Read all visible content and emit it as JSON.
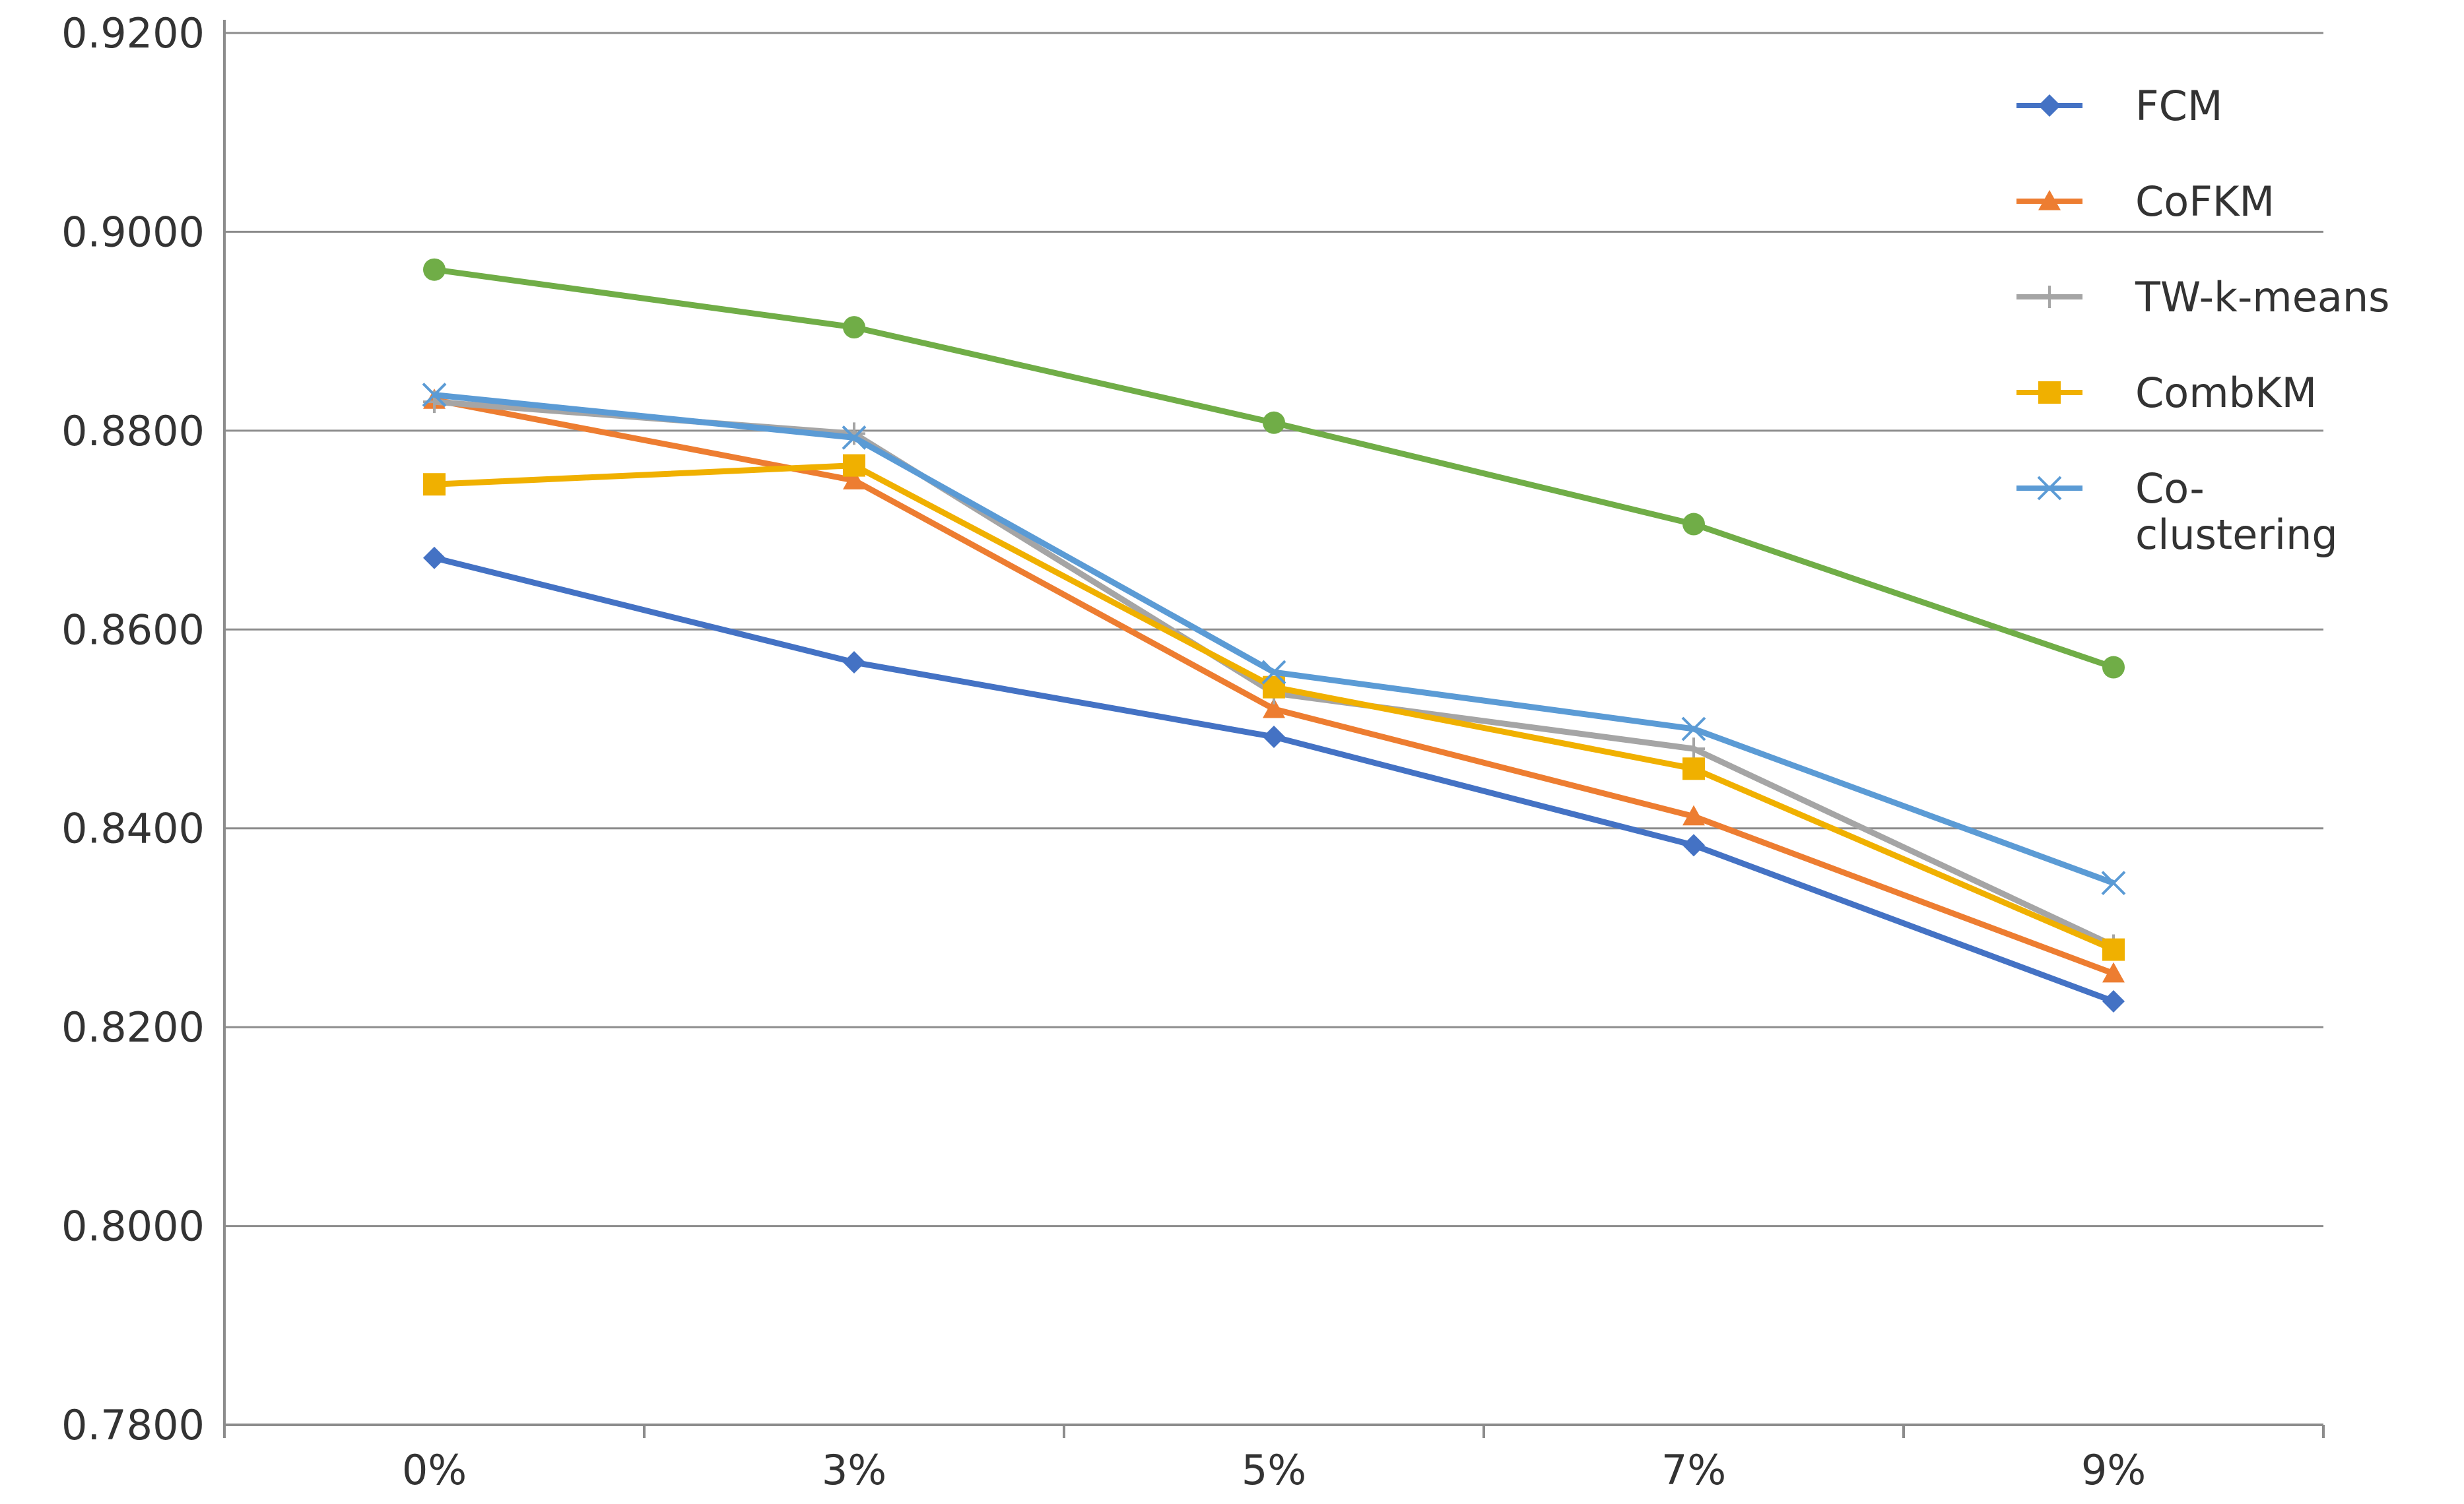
{
  "chart_data": {
    "type": "line",
    "title": "",
    "xlabel": "",
    "ylabel": "",
    "categories": [
      "0%",
      "3%",
      "5%",
      "7%",
      "9%"
    ],
    "ylim": [
      0.78,
      0.92
    ],
    "ytick_step": 0.02,
    "y_tick_labels": [
      "0.7800",
      "0.8000",
      "0.8200",
      "0.8400",
      "0.8600",
      "0.8800",
      "0.9000",
      "0.9200"
    ],
    "grid": true,
    "legend_position": "top-right",
    "series": [
      {
        "name": "FCM",
        "color": "#4472C4",
        "marker": "diamond",
        "values": [
          0.8672,
          0.8567,
          0.8492,
          0.8383,
          0.8226
        ]
      },
      {
        "name": "CoFKM",
        "color": "#ED7D31",
        "marker": "triangle",
        "values": [
          0.8831,
          0.875,
          0.852,
          0.8412,
          0.8254
        ]
      },
      {
        "name": "TW-k-means",
        "color": "#A5A5A5",
        "marker": "plus",
        "values": [
          0.8829,
          0.8797,
          0.8536,
          0.848,
          0.8282
        ]
      },
      {
        "name": "CombKM",
        "color": "#F0B000",
        "marker": "square",
        "values": [
          0.8746,
          0.8765,
          0.8542,
          0.846,
          0.8278
        ]
      },
      {
        "name": "Co-clustering",
        "legend_lines": [
          "Co-",
          "clustering"
        ],
        "color": "#5B9BD5",
        "marker": "x",
        "values": [
          0.8836,
          0.8793,
          0.8557,
          0.85,
          0.8345
        ]
      },
      {
        "name": "",
        "color": "#70AD47",
        "marker": "circle",
        "values": [
          0.8962,
          0.8904,
          0.8808,
          0.8706,
          0.8562
        ]
      }
    ]
  }
}
